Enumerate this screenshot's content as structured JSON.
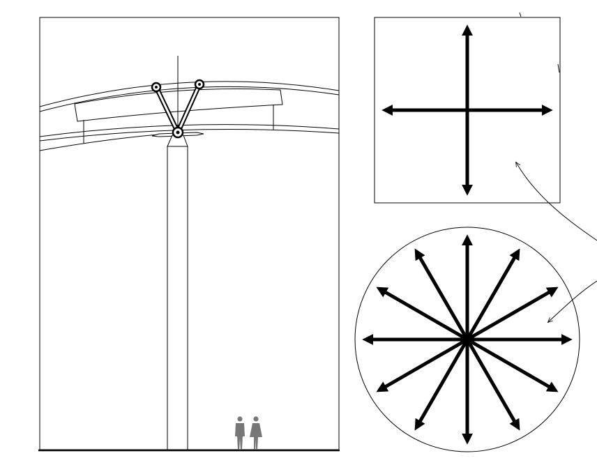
{
  "diagram": {
    "panels": [
      {
        "name": "column-elevation-drawing",
        "label": ""
      },
      {
        "name": "square-bidirectional-panel",
        "label": ""
      },
      {
        "name": "circle-radial-panel",
        "label": ""
      }
    ],
    "square_arrow_directions": 4,
    "circle_arrow_directions": 12,
    "scale_figures": 2,
    "colors": {
      "line": "#000000",
      "figure": "#777777",
      "background": "#ffffff"
    }
  }
}
